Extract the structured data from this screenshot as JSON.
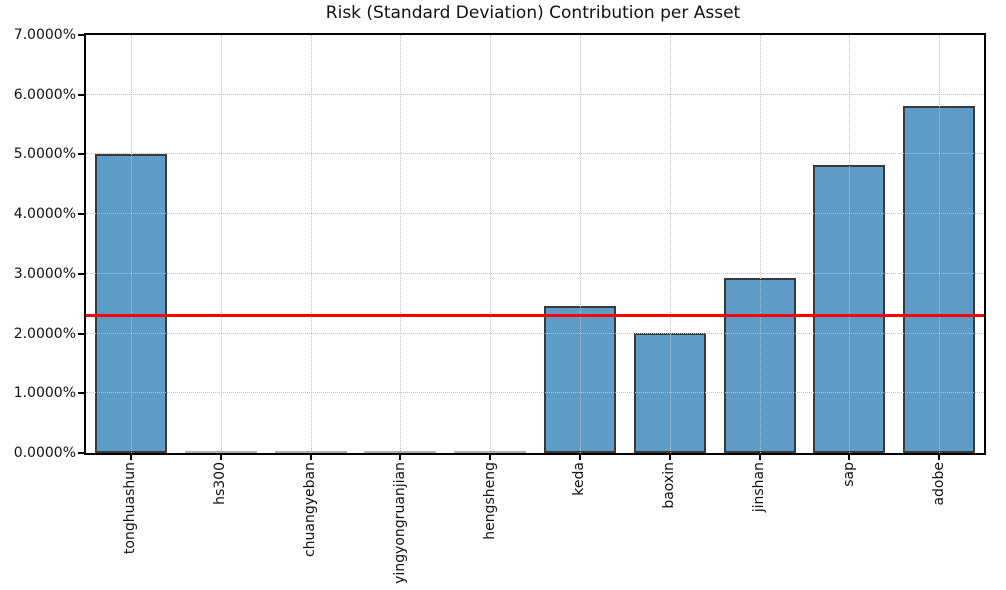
{
  "chart_data": {
    "type": "bar",
    "title": "Risk (Standard Deviation) Contribution per Asset",
    "categories": [
      "tonghuashun",
      "hs300",
      "chuangyeban",
      "yingyongruanjian",
      "hengsheng",
      "keda",
      "baoxin",
      "jinshan",
      "sap",
      "adobe"
    ],
    "values": [
      5.01,
      0.0,
      0.0,
      0.0,
      0.0,
      2.46,
      2.01,
      2.93,
      4.83,
      5.81
    ],
    "xlabel": "",
    "ylabel": "",
    "ylim": [
      0,
      7
    ],
    "ytick_step": 1,
    "ytick_labels": [
      "0.0000%",
      "1.0000%",
      "2.0000%",
      "3.0000%",
      "4.0000%",
      "5.0000%",
      "6.0000%",
      "7.0000%"
    ],
    "grid": true,
    "legend": false,
    "mean_line": {
      "value": 2.305,
      "color": "#ff0000"
    },
    "bar_color": "#5d9cc7",
    "bar_edge_color": "#3a3a3a",
    "zero_bar_color": "#b0b0b0"
  }
}
